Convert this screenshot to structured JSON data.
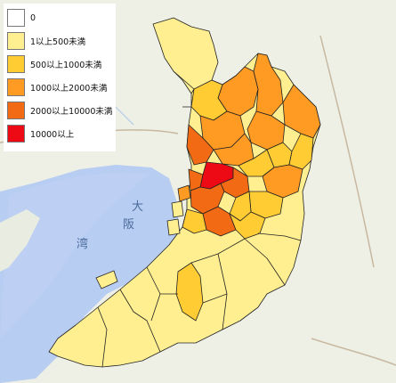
{
  "legend": {
    "items": [
      {
        "label": "0",
        "color": "#ffffff"
      },
      {
        "label": "1以上500未満",
        "color": "#ffef91"
      },
      {
        "label": "500以上1000未満",
        "color": "#ffcc33"
      },
      {
        "label": "1000以上2000未満",
        "color": "#ff9a22"
      },
      {
        "label": "2000以上10000未満",
        "color": "#f26a14"
      },
      {
        "label": "10000以上",
        "color": "#ee0a14"
      }
    ]
  },
  "basemap": {
    "labels": [
      "大",
      "阪",
      "湾"
    ]
  }
}
